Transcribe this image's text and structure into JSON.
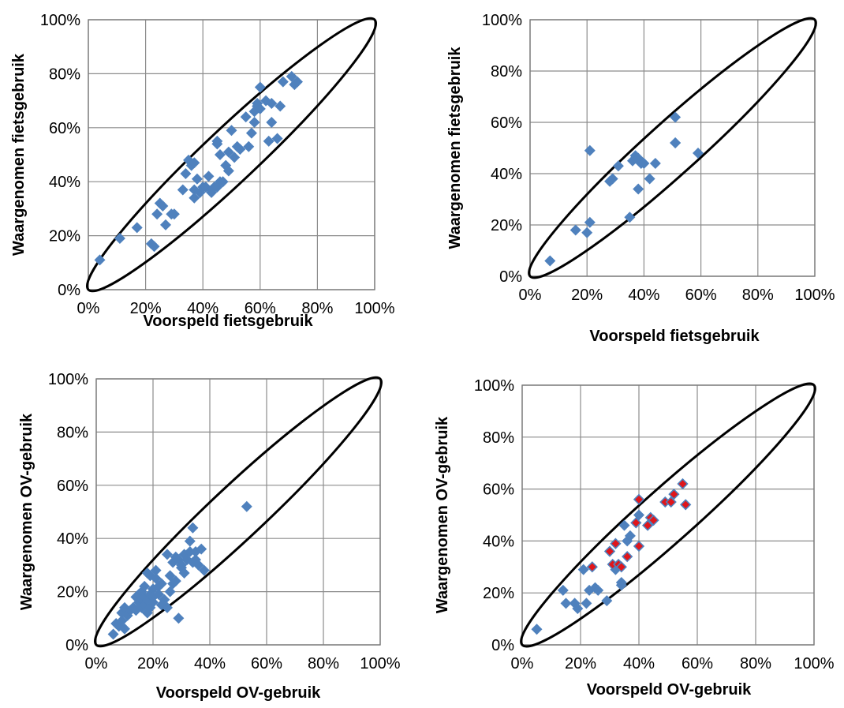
{
  "colors": {
    "point": "#4f81bd",
    "highlight": "#e0161b",
    "ellipse": "#000000",
    "grid": "#8c8c8c"
  },
  "chart_data": [
    {
      "type": "scatter",
      "xlabel": "Voorspeld fietsgebruik",
      "ylabel": "Waargenomen fietsgebruik",
      "xlim": [
        0,
        100
      ],
      "ylim": [
        0,
        100
      ],
      "xticks": [
        "0%",
        "20%",
        "40%",
        "60%",
        "80%",
        "100%"
      ],
      "yticks": [
        "0%",
        "20%",
        "40%",
        "60%",
        "80%",
        "100%"
      ],
      "grid": true,
      "series": [
        {
          "x": [
            4,
            11,
            17,
            23,
            24,
            25,
            26,
            27,
            29,
            30,
            33,
            34,
            35,
            36,
            37,
            37,
            38,
            39,
            40,
            41,
            42,
            43,
            43,
            44,
            45,
            45,
            46,
            46,
            47,
            48,
            49,
            49,
            50,
            51,
            52,
            53,
            55,
            56,
            57,
            58,
            58,
            59,
            59,
            60,
            60,
            62,
            63,
            64,
            64,
            66,
            67,
            68,
            71,
            72,
            73,
            22,
            37,
            45
          ],
          "y": [
            11,
            19,
            23,
            16,
            28,
            32,
            31,
            24,
            28,
            28,
            37,
            43,
            48,
            46,
            37,
            34,
            41,
            36,
            38,
            38,
            42,
            37,
            36,
            38,
            54,
            55,
            50,
            40,
            40,
            46,
            44,
            51,
            59,
            49,
            53,
            52,
            64,
            53,
            58,
            66,
            62,
            68,
            69,
            75,
            67,
            70,
            55,
            69,
            62,
            56,
            68,
            77,
            79,
            76,
            77,
            17,
            47,
            38
          ]
        }
      ]
    },
    {
      "type": "scatter",
      "xlabel": "Voorspeld fietsgebruik",
      "ylabel": "Waargenomen fietsgebruik",
      "xlim": [
        0,
        100
      ],
      "ylim": [
        0,
        100
      ],
      "xticks": [
        "0%",
        "20%",
        "40%",
        "60%",
        "80%",
        "100%"
      ],
      "yticks": [
        "0%",
        "20%",
        "40%",
        "60%",
        "80%",
        "100%"
      ],
      "grid": true,
      "series": [
        {
          "x": [
            7,
            16,
            20,
            21,
            21,
            28,
            29,
            31,
            35,
            36,
            37,
            37,
            38,
            38,
            39,
            40,
            42,
            44,
            51,
            51,
            51,
            59
          ],
          "y": [
            6,
            18,
            17,
            49,
            21,
            37,
            38,
            43,
            23,
            45,
            46,
            47,
            34,
            46,
            44,
            44,
            38,
            44,
            52,
            52,
            62,
            48
          ]
        }
      ]
    },
    {
      "type": "scatter",
      "xlabel": "Voorspeld OV-gebruik",
      "ylabel": "Waargenomen OV-gebruik",
      "xlim": [
        0,
        100
      ],
      "ylim": [
        0,
        100
      ],
      "xticks": [
        "0%",
        "20%",
        "40%",
        "60%",
        "80%",
        "100%"
      ],
      "yticks": [
        "0%",
        "20%",
        "40%",
        "60%",
        "80%",
        "100%"
      ],
      "grid": true,
      "series": [
        {
          "x": [
            6,
            7,
            8,
            9,
            9,
            10,
            10,
            11,
            12,
            13,
            14,
            14,
            15,
            15,
            16,
            16,
            16,
            17,
            17,
            17,
            18,
            18,
            18,
            19,
            19,
            19,
            20,
            20,
            20,
            21,
            21,
            22,
            22,
            23,
            23,
            24,
            25,
            25,
            26,
            26,
            27,
            27,
            28,
            28,
            29,
            29,
            30,
            30,
            31,
            31,
            32,
            33,
            33,
            34,
            34,
            35,
            35,
            36,
            37,
            38,
            53
          ],
          "y": [
            4,
            8,
            7,
            9,
            12,
            14,
            6,
            11,
            13,
            14,
            13,
            18,
            16,
            19,
            17,
            20,
            14,
            15,
            22,
            18,
            12,
            27,
            17,
            19,
            14,
            26,
            21,
            18,
            16,
            28,
            25,
            22,
            19,
            23,
            15,
            17,
            14,
            34,
            26,
            20,
            31,
            23,
            24,
            33,
            10,
            32,
            29,
            30,
            34,
            27,
            32,
            39,
            35,
            44,
            31,
            35,
            32,
            30,
            36,
            28,
            52
          ]
        }
      ]
    },
    {
      "type": "scatter",
      "xlabel": "Voorspeld OV-gebruik",
      "ylabel": "Waargenomen OV-gebruik",
      "xlim": [
        0,
        100
      ],
      "ylim": [
        0,
        100
      ],
      "xticks": [
        "0%",
        "20%",
        "40%",
        "60%",
        "80%",
        "100%"
      ],
      "yticks": [
        "0%",
        "20%",
        "40%",
        "60%",
        "80%",
        "100%"
      ],
      "grid": true,
      "series": [
        {
          "x": [
            5,
            14,
            15,
            18,
            19,
            21,
            22,
            23,
            25,
            26,
            29,
            32,
            34,
            34,
            35,
            36,
            37,
            40
          ],
          "y": [
            6,
            21,
            16,
            16,
            14,
            29,
            16,
            21,
            22,
            21,
            17,
            29,
            24,
            23,
            46,
            40,
            42,
            50
          ]
        },
        {
          "x": [
            24,
            30,
            31,
            32,
            33,
            34,
            36,
            39,
            40,
            40,
            43,
            44,
            45,
            49,
            51,
            52,
            55,
            56
          ],
          "y": [
            30,
            36,
            31,
            39,
            31,
            30,
            34,
            47,
            56,
            38,
            46,
            49,
            48,
            55,
            55,
            58,
            62,
            54
          ]
        }
      ]
    }
  ]
}
